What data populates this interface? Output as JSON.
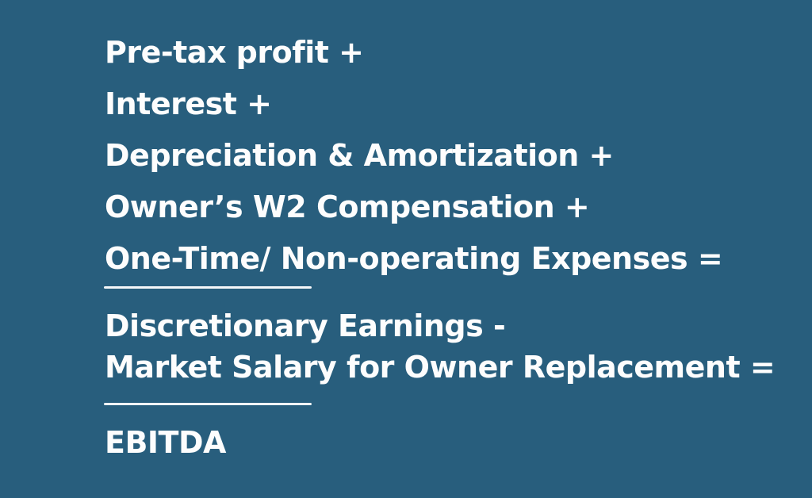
{
  "graphic": {
    "title_semantic": "EBITDA calculation formula graphic",
    "colors": {
      "background": "#285e7d",
      "text": "#fdfdfd",
      "divider": "#f4f7f9"
    },
    "formula": {
      "items": [
        "Pre-tax profit +",
        "Interest +",
        "Depreciation & Amortization +",
        "Owner’s W2 Compensation +",
        "One-Time/ Non-operating Expenses =",
        "Discretionary Earnings -",
        "Market Salary for Owner Replacement =",
        "EBITDA"
      ]
    }
  }
}
